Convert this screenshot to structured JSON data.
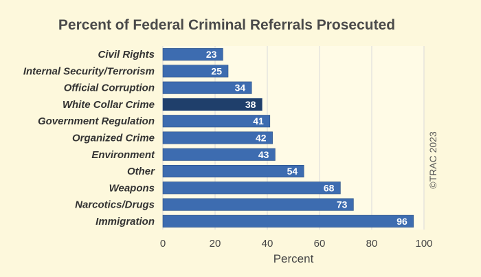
{
  "chart_data": {
    "type": "bar",
    "orientation": "horizontal",
    "title": "Percent of Federal Criminal Referrals Prosecuted",
    "xlabel": "Percent",
    "ylabel": "",
    "categories": [
      "Civil Rights",
      "Internal Security/Terrorism",
      "Official Corruption",
      "White Collar Crime",
      "Government Regulation",
      "Organized Crime",
      "Environment",
      "Other",
      "Weapons",
      "Narcotics/Drugs",
      "Immigration"
    ],
    "values": [
      23,
      25,
      34,
      38,
      41,
      42,
      43,
      54,
      68,
      73,
      96
    ],
    "data_labels": [
      "23",
      "25",
      "34",
      "38",
      "41",
      "42",
      "43",
      "54",
      "68",
      "73",
      "96"
    ],
    "highlight_category": "White Collar Crime",
    "xlim": [
      0,
      100
    ],
    "xticks": [
      0,
      20,
      40,
      60,
      80,
      100
    ],
    "xtick_labels": [
      "0",
      "20",
      "40",
      "60",
      "80",
      "100"
    ],
    "grid": "vertical",
    "legend": "none",
    "colors": {
      "bar": "#3d6cb0",
      "highlight_bar": "#1f3f6b",
      "plot_background": "#fffbe6",
      "background": "#fdf8dc",
      "gridline": "#d9d9d9"
    }
  },
  "credit": "©TRAC 2023"
}
